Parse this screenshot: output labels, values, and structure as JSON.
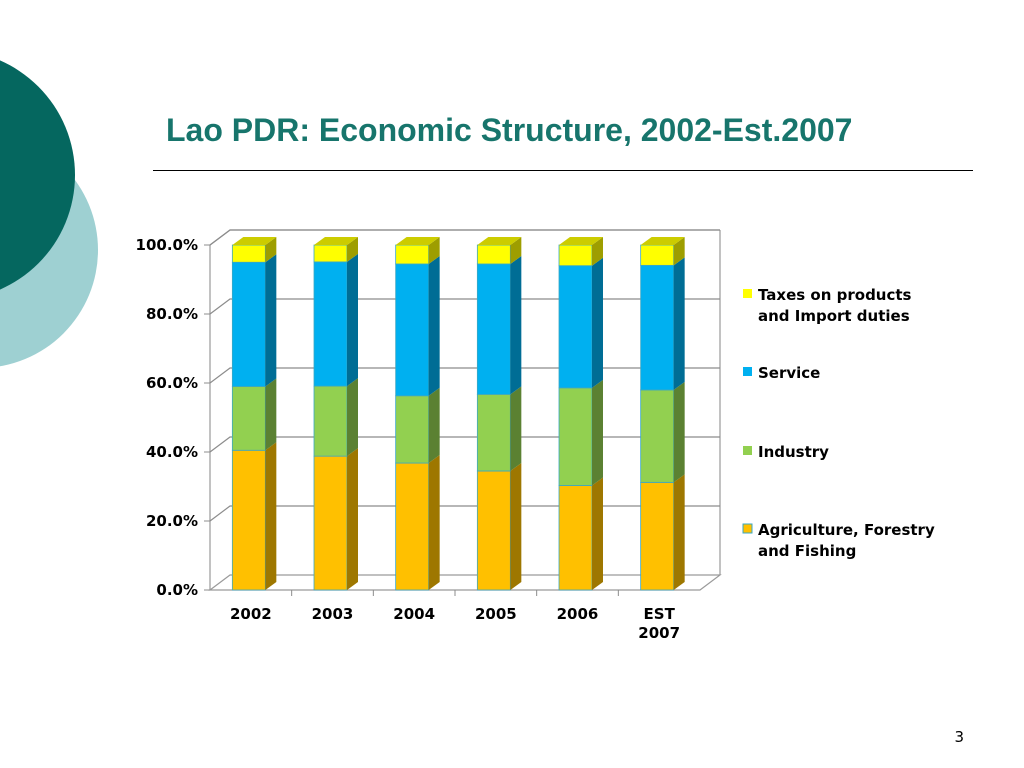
{
  "slide": {
    "title": "Lao PDR: Economic Structure, 2002-Est.2007",
    "page_number": "3"
  },
  "colors": {
    "title": "#17756c",
    "dark_teal_circle": "#05675f",
    "light_teal_circle": "#9ed0d2",
    "agriculture": "#ffc000",
    "industry": "#92d050",
    "service": "#00b0f0",
    "taxes": "#ffff00"
  },
  "chart_data": {
    "type": "bar",
    "stacked": true,
    "three_d": true,
    "categories": [
      "2002",
      "2003",
      "2004",
      "2005",
      "2006",
      "EST\n2007"
    ],
    "series": [
      {
        "name": "Agriculture, Forestry and Fishing",
        "values": [
          40.5,
          38.8,
          36.8,
          34.5,
          30.3,
          31.2
        ]
      },
      {
        "name": "Industry",
        "values": [
          18.5,
          20.3,
          19.5,
          22.2,
          28.3,
          26.8
        ]
      },
      {
        "name": "Service",
        "values": [
          36.0,
          36.0,
          38.2,
          37.8,
          35.4,
          36.1
        ]
      },
      {
        "name": "Taxes on products and Import duties",
        "values": [
          5.0,
          4.9,
          5.5,
          5.5,
          6.0,
          5.9
        ]
      }
    ],
    "legend_order": [
      "Taxes on products and Import duties",
      "Service",
      "Industry",
      "Agriculture, Forestry and Fishing"
    ],
    "ylim": [
      0,
      100
    ],
    "y_ticks": [
      "0.0%",
      "20.0%",
      "40.0%",
      "60.0%",
      "80.0%",
      "100.0%"
    ],
    "y_tick_values": [
      0,
      20,
      40,
      60,
      80,
      100
    ],
    "grid": true,
    "legend_position": "right"
  }
}
